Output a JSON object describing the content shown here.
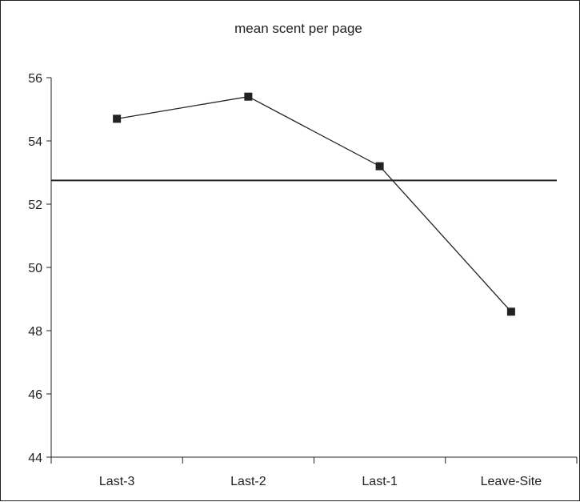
{
  "chart_data": {
    "type": "line",
    "title": "mean scent per page",
    "xlabel": "",
    "ylabel": "",
    "categories": [
      "Last-3",
      "Last-2",
      "Last-1",
      "Leave-Site"
    ],
    "series": [
      {
        "values": [
          54.7,
          55.4,
          53.2,
          48.6
        ]
      }
    ],
    "reference_line": 52.75,
    "ylim": [
      44,
      56
    ],
    "yticks": [
      "44",
      "46",
      "48",
      "50",
      "52",
      "54",
      "56"
    ],
    "grid": false,
    "legend": "none",
    "colors": {
      "line": "#222222",
      "marker": "#222222",
      "reference": "#222222",
      "axis": "#222222",
      "text": "#222222"
    }
  }
}
